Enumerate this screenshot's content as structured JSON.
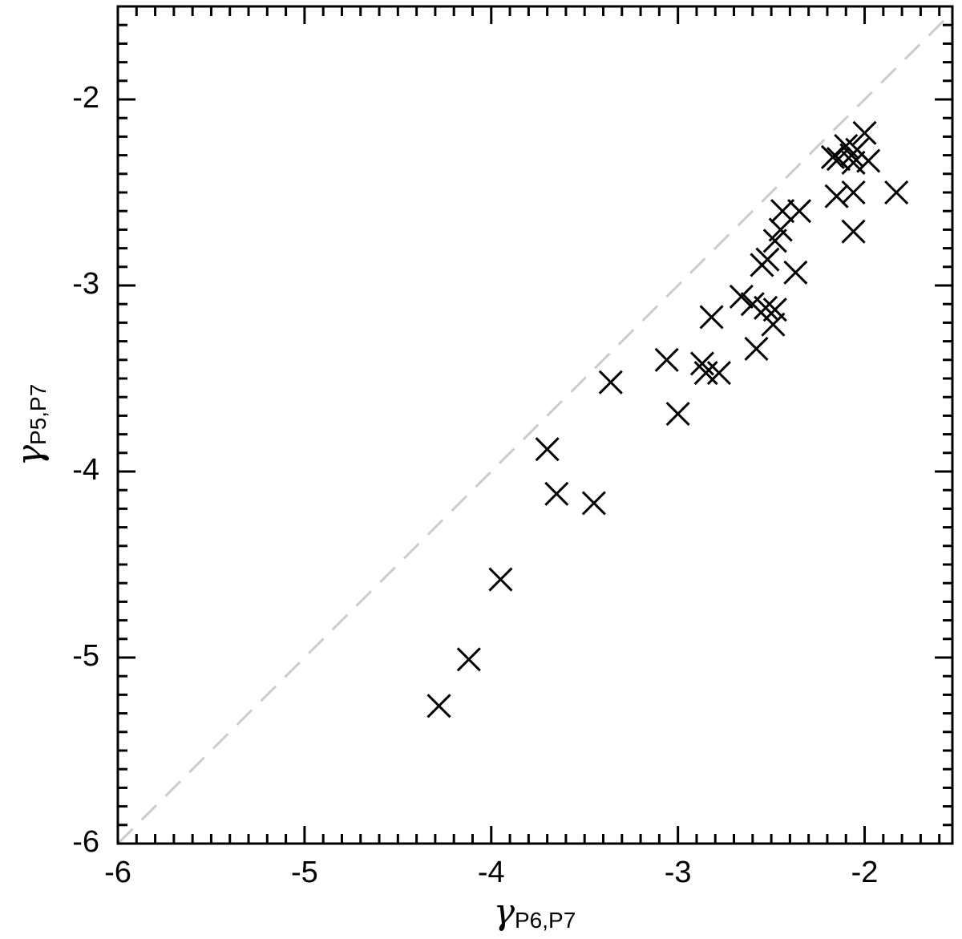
{
  "chart_data": {
    "type": "scatter",
    "xlabel": {
      "symbol": "γ",
      "subscript": "P6,P7"
    },
    "ylabel": {
      "symbol": "γ",
      "subscript": "P5,P7"
    },
    "xlim": [
      -6,
      -1.53
    ],
    "ylim": [
      -6,
      -1.5
    ],
    "xticks": [
      -6,
      -5,
      -4,
      -3,
      -2
    ],
    "yticks": [
      -6,
      -5,
      -4,
      -3,
      -2
    ],
    "minor_ticks": true,
    "identity_line": true,
    "identity_color": "#cccccc",
    "marker": "x",
    "color": "#000000",
    "x": [
      -4.28,
      -4.12,
      -3.95,
      -3.7,
      -3.65,
      -3.45,
      -3.36,
      -3.06,
      -3.0,
      -2.87,
      -2.85,
      -2.78,
      -2.82,
      -2.66,
      -2.58,
      -2.6,
      -2.53,
      -2.48,
      -2.49,
      -2.55,
      -2.52,
      -2.48,
      -2.45,
      -2.44,
      -2.37,
      -2.35,
      -2.15,
      -2.14,
      -2.1,
      -2.07,
      -2.06,
      -2.04,
      -2.0,
      -2.06,
      -2.06,
      -1.98,
      -1.83,
      -2.17
    ],
    "y": [
      -5.26,
      -5.01,
      -4.58,
      -3.88,
      -4.12,
      -4.17,
      -3.52,
      -3.4,
      -3.69,
      -3.42,
      -3.47,
      -3.47,
      -3.17,
      -3.06,
      -3.34,
      -3.1,
      -3.12,
      -3.13,
      -3.21,
      -2.89,
      -2.86,
      -2.76,
      -2.7,
      -2.6,
      -2.93,
      -2.6,
      -2.52,
      -2.32,
      -2.25,
      -2.3,
      -2.34,
      -2.27,
      -2.18,
      -2.5,
      -2.71,
      -2.33,
      -2.5,
      -2.31
    ]
  }
}
